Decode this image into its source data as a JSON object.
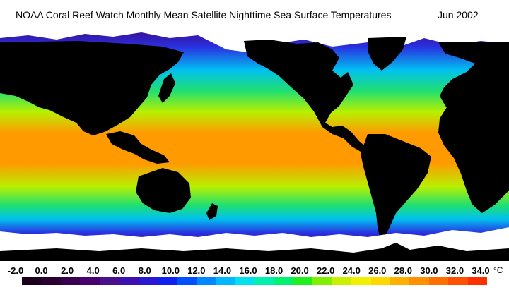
{
  "title": "NOAA Coral Reef Watch Monthly Mean Satellite Nighttime Sea Surface Temperatures",
  "date": "Jun 2002",
  "legend": {
    "unit": "°C",
    "ticks": [
      "-2.0",
      "0.0",
      "2.0",
      "4.0",
      "6.0",
      "8.0",
      "10.0",
      "12.0",
      "14.0",
      "16.0",
      "18.0",
      "20.0",
      "22.0",
      "24.0",
      "26.0",
      "28.0",
      "30.0",
      "32.0",
      "34.0"
    ],
    "colors": [
      "#1a001a",
      "#2a0030",
      "#3a0050",
      "#48006e",
      "#4a108e",
      "#3d10b0",
      "#2a18d0",
      "#1020f0",
      "#0050ff",
      "#0088ff",
      "#00b8ff",
      "#00e0f0",
      "#00f0b0",
      "#00f070",
      "#20f020",
      "#80f000",
      "#c8f000",
      "#f0f000",
      "#ffd800",
      "#ffb000",
      "#ff9000",
      "#ff7000",
      "#ff5000",
      "#ff3000"
    ]
  },
  "map_palette": {
    "polar_ocean": "#3c0a8c",
    "subpolar_ocean": "#2a30e0",
    "cool_ocean": "#00c0f0",
    "temperate_ocean": "#20e070",
    "warm_ocean": "#b8f000",
    "tropical_ocean": "#ff9a00",
    "land": "#000000",
    "ice": "#ffffff"
  }
}
